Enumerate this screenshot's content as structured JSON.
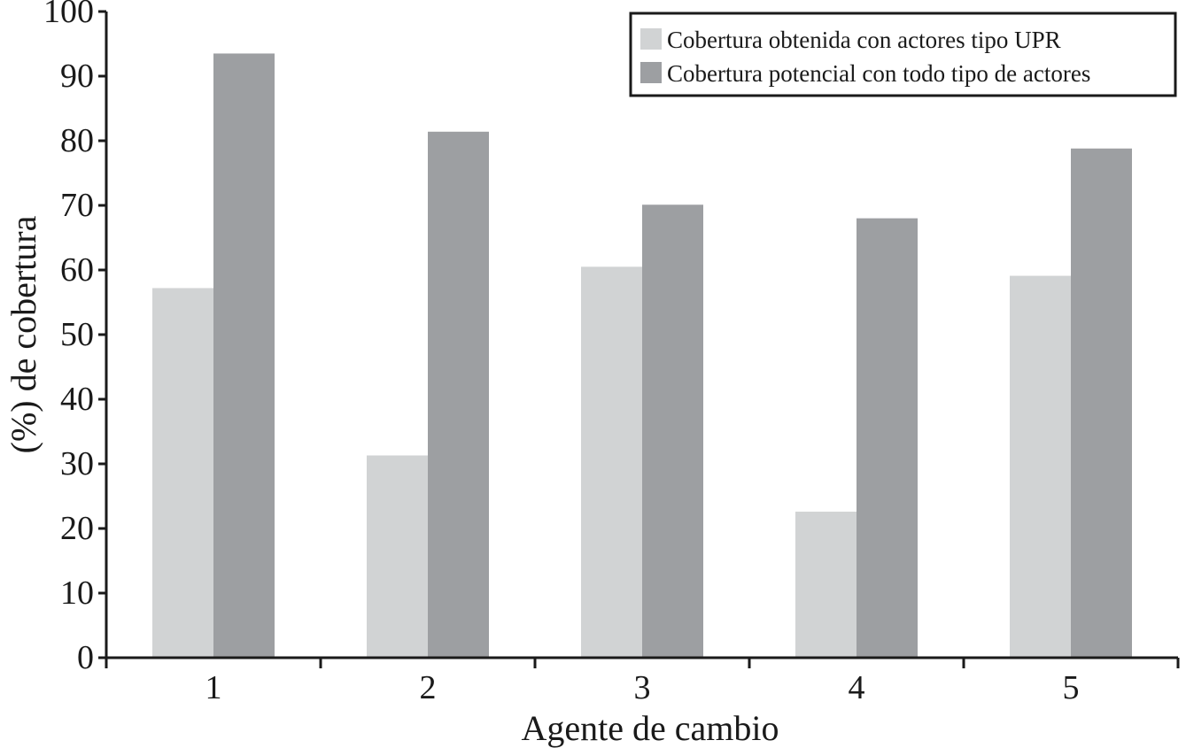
{
  "chart_data": {
    "type": "bar",
    "title": "",
    "xlabel": "Agente de cambio",
    "ylabel": "(%) de cobertura",
    "categories": [
      "1",
      "2",
      "3",
      "4",
      "5"
    ],
    "series": [
      {
        "name": "Cobertura obtenida con actores tipo UPR",
        "color": "#d1d3d4",
        "values": [
          57.2,
          31.3,
          60.5,
          22.6,
          59.1
        ]
      },
      {
        "name": "Cobertura potencial con todo tipo de actores",
        "color": "#9d9fa2",
        "values": [
          93.5,
          81.4,
          70.1,
          68.0,
          78.8
        ]
      }
    ],
    "ylim": [
      0,
      100
    ],
    "yticks": [
      "0",
      "10",
      "20",
      "30",
      "40",
      "50",
      "60",
      "70",
      "80",
      "90",
      "100"
    ],
    "grid": false,
    "legend_position": "top-right"
  }
}
